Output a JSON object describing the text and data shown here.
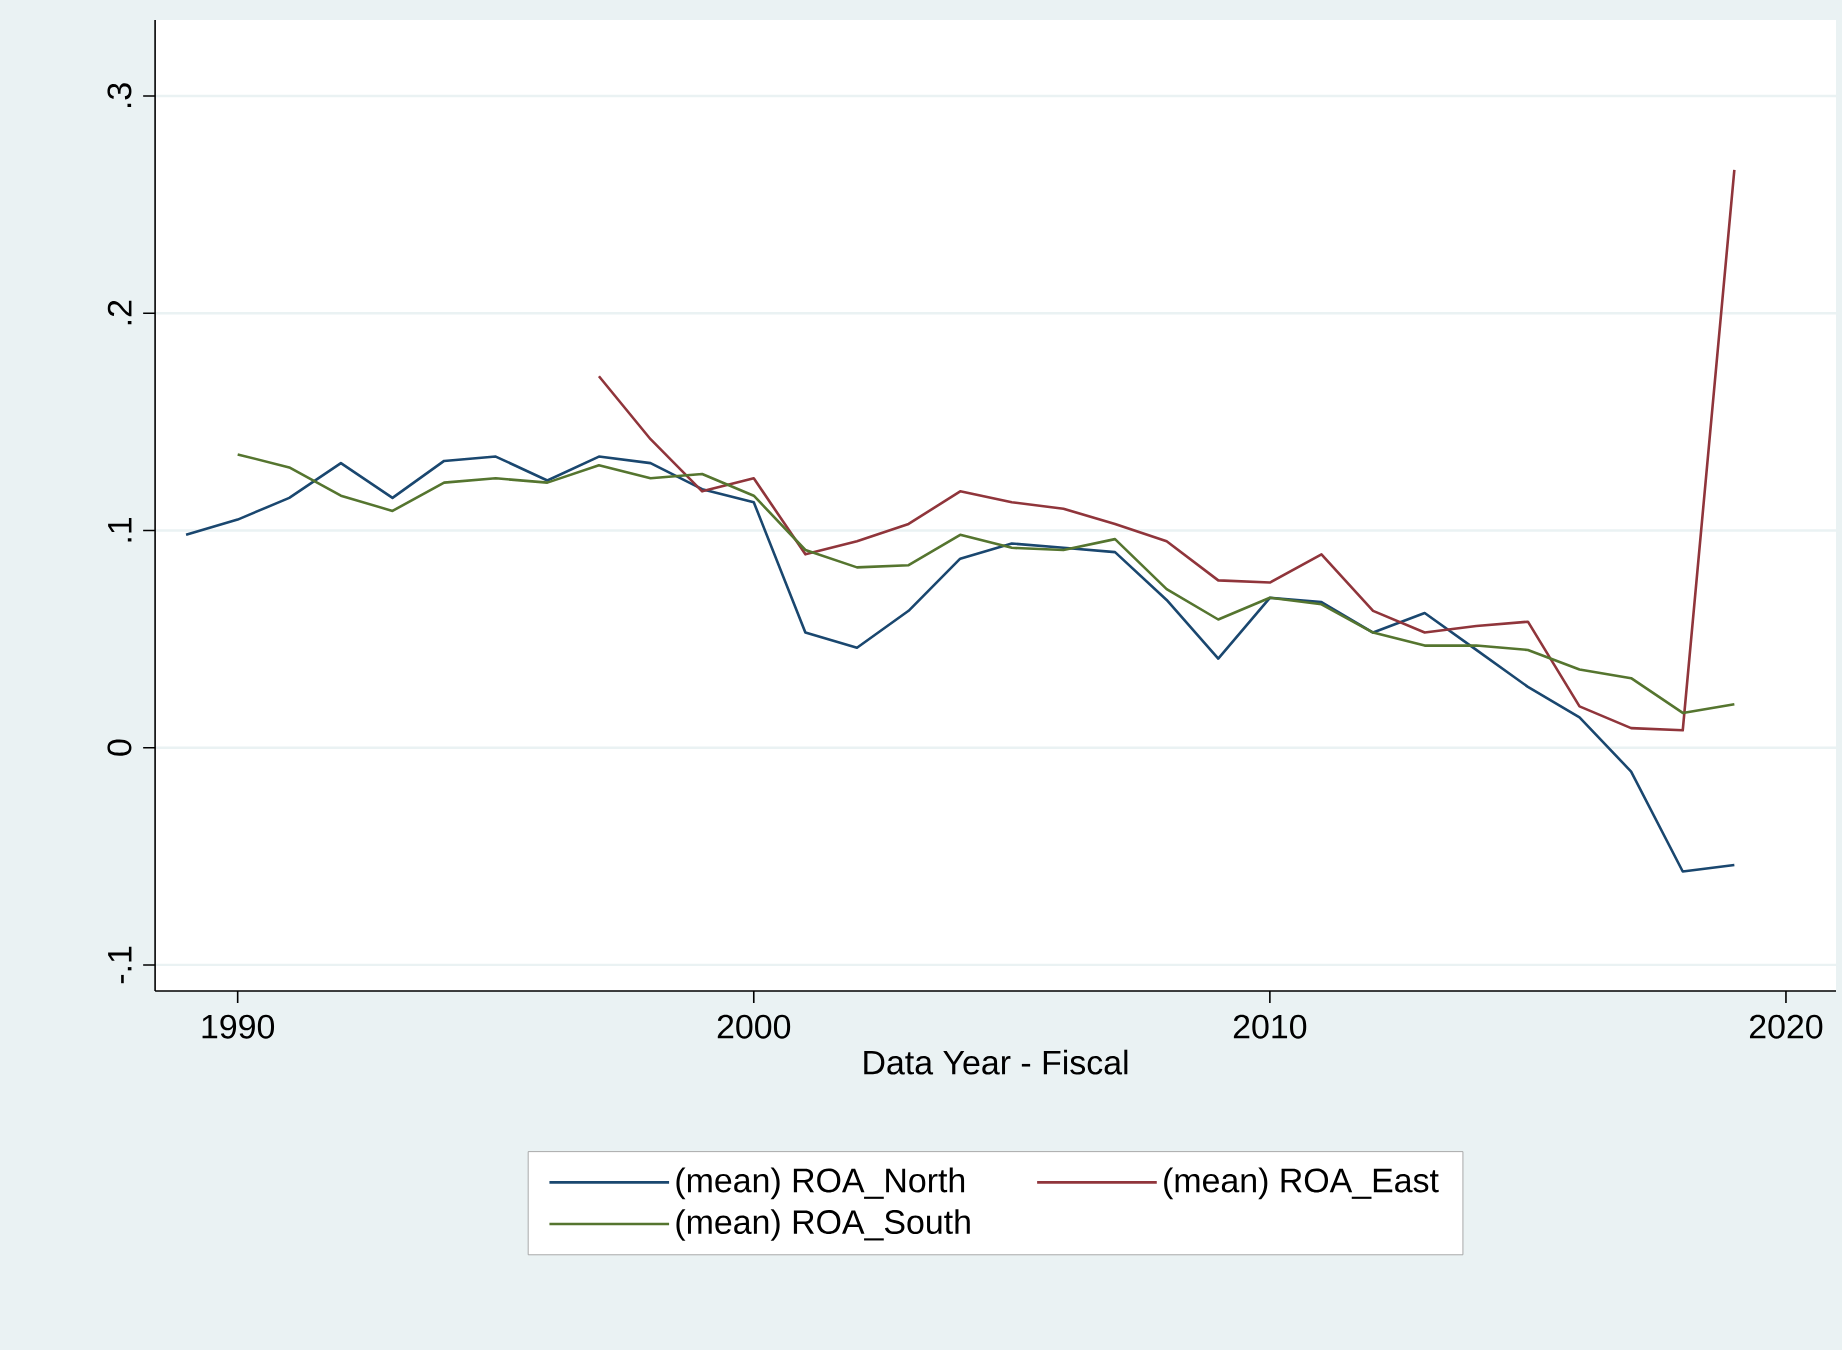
{
  "chart_data": {
    "type": "line",
    "xlabel": "Data Year - Fiscal",
    "x": [
      1989,
      1990,
      1991,
      1992,
      1993,
      1994,
      1995,
      1996,
      1997,
      1998,
      1999,
      2000,
      2001,
      2002,
      2003,
      2004,
      2005,
      2006,
      2007,
      2008,
      2009,
      2010,
      2011,
      2012,
      2013,
      2014,
      2015,
      2016,
      2017,
      2018,
      2019
    ],
    "series": [
      {
        "name": "(mean) ROA_North",
        "color": "#1a476f",
        "values": [
          0.098,
          0.105,
          0.115,
          0.131,
          0.115,
          0.132,
          0.134,
          0.123,
          0.134,
          0.131,
          0.119,
          0.113,
          0.053,
          0.046,
          0.063,
          0.087,
          0.094,
          0.092,
          0.09,
          0.068,
          0.041,
          0.069,
          0.067,
          0.053,
          0.062,
          0.045,
          0.028,
          0.014,
          -0.011,
          -0.057,
          -0.054
        ]
      },
      {
        "name": "(mean) ROA_East",
        "color": "#90353b",
        "values": [
          null,
          null,
          null,
          null,
          null,
          null,
          null,
          null,
          0.171,
          0.142,
          0.118,
          0.124,
          0.089,
          0.095,
          0.103,
          0.118,
          0.113,
          0.11,
          0.103,
          0.095,
          0.077,
          0.076,
          0.089,
          0.063,
          0.053,
          0.056,
          0.058,
          0.019,
          0.009,
          0.008,
          0.266
        ]
      },
      {
        "name": "(mean) ROA_South",
        "color": "#55752f",
        "values": [
          null,
          0.135,
          0.129,
          0.116,
          0.109,
          0.122,
          0.124,
          0.122,
          0.13,
          0.124,
          0.126,
          0.116,
          0.091,
          0.083,
          0.084,
          0.098,
          0.092,
          0.091,
          0.096,
          0.073,
          0.059,
          0.069,
          0.066,
          0.053,
          0.047,
          0.047,
          0.045,
          0.036,
          0.032,
          0.016,
          0.02
        ]
      }
    ],
    "xlim": [
      1988.4,
      2020.97
    ],
    "ylim": [
      -0.112,
      0.335
    ],
    "xticks": [
      1990,
      2000,
      2010,
      2020
    ],
    "yticks": [
      {
        "value": -0.1,
        "label": "-.1"
      },
      0,
      {
        "value": 0.1,
        "label": ".1"
      },
      {
        "value": 0.2,
        "label": ".2"
      },
      {
        "value": 0.3,
        "label": ".3"
      }
    ],
    "grid": "y",
    "legend": "bottom",
    "marker": "none",
    "line_style": "solid"
  }
}
